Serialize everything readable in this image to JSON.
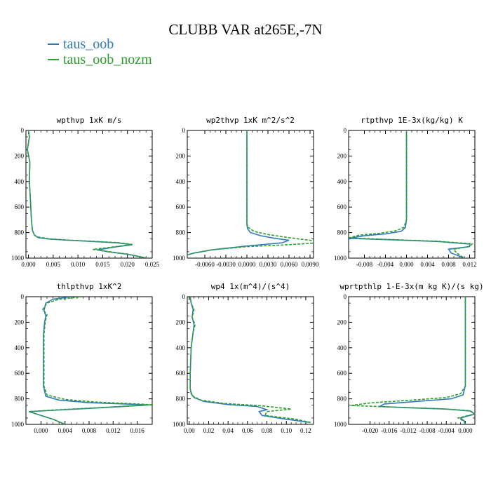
{
  "title": "CLUBB VAR at265E,-7N",
  "legend": [
    {
      "label": "taus_oob",
      "color": "#2e7abf"
    },
    {
      "label": "taus_oob_nozm",
      "color": "#2ca02c"
    }
  ],
  "chart_data": [
    {
      "type": "line",
      "title": "wpthvp  1xK m/s",
      "xlim": [
        -0.0005,
        0.025
      ],
      "ylim": [
        1000,
        0
      ],
      "xticks": [
        "0.000",
        "0.005",
        "0.010",
        "0.015",
        "0.020",
        "0.025"
      ],
      "xtick_values": [
        0,
        0.005,
        0.01,
        0.015,
        0.02,
        0.025
      ],
      "yticks": [
        "0",
        "200",
        "400",
        "600",
        "800",
        "1000"
      ],
      "ytick_values": [
        0,
        200,
        400,
        600,
        800,
        1000
      ],
      "series": [
        {
          "name": "taus_oob",
          "color": "#2e7abf",
          "x": [
            0.0,
            0.0002,
            -0.0002,
            0.0003,
            0.0002,
            0.0004,
            0.0006,
            0.0008,
            0.0012,
            0.002,
            0.004,
            0.008,
            0.013,
            0.018,
            0.021,
            0.018,
            0.014,
            0.016,
            0.02,
            0.024
          ],
          "y": [
            0,
            50,
            150,
            250,
            400,
            550,
            700,
            780,
            820,
            840,
            850,
            860,
            870,
            880,
            895,
            910,
            935,
            950,
            970,
            1000
          ]
        },
        {
          "name": "taus_oob_nozm",
          "color": "#2ca02c",
          "x": [
            0.0,
            0.0002,
            -0.0002,
            0.0003,
            0.0002,
            0.0004,
            0.0006,
            0.0008,
            0.0012,
            0.002,
            0.004,
            0.008,
            0.013,
            0.018,
            0.021,
            0.018,
            0.013,
            0.016,
            0.02,
            0.024
          ],
          "y": [
            0,
            50,
            150,
            250,
            400,
            550,
            700,
            780,
            820,
            835,
            848,
            858,
            868,
            878,
            893,
            908,
            932,
            948,
            968,
            1000
          ]
        }
      ]
    },
    {
      "type": "line",
      "title": "wp2thvp  1xK m^2/s^2",
      "xlim": [
        -0.0085,
        0.0095
      ],
      "ylim": [
        1000,
        0
      ],
      "xticks": [
        "-0.0060",
        "-0.0030",
        "0.0000",
        "0.0030",
        "0.0060",
        "0.0090"
      ],
      "xtick_values": [
        -0.006,
        -0.003,
        0.0,
        0.003,
        0.006,
        0.009
      ],
      "yticks": [
        "0",
        "200",
        "400",
        "600",
        "800",
        "1000"
      ],
      "ytick_values": [
        0,
        200,
        400,
        600,
        800,
        1000
      ],
      "series": [
        {
          "name": "taus_oob",
          "color": "#2e7abf",
          "x": [
            0.0,
            0.0,
            0.0,
            0.0,
            0.0001,
            0.0005,
            0.002,
            0.004,
            0.006,
            0.005,
            0.0,
            -0.005,
            -0.0075,
            -0.0085
          ],
          "y": [
            0,
            300,
            600,
            740,
            770,
            800,
            825,
            845,
            860,
            880,
            905,
            935,
            960,
            975
          ]
        },
        {
          "name": "taus_oob_nozm",
          "color": "#2ca02c",
          "x": [
            0.0,
            0.0,
            0.0,
            0.0,
            0.0002,
            0.001,
            0.003,
            0.006,
            0.009,
            0.01,
            0.006,
            0.0,
            -0.005,
            -0.0075,
            -0.0085
          ],
          "y": [
            0,
            300,
            600,
            730,
            760,
            790,
            815,
            840,
            860,
            880,
            895,
            910,
            935,
            960,
            975
          ]
        }
      ]
    },
    {
      "type": "line",
      "title": "rtpthvp  1E-3x(kg/kg) K",
      "xlim": [
        -0.011,
        0.013
      ],
      "ylim": [
        1000,
        0
      ],
      "xticks": [
        "-0.008",
        "-0.004",
        "0.000",
        "0.004",
        "0.008",
        "0.012"
      ],
      "xtick_values": [
        -0.008,
        -0.004,
        0.0,
        0.004,
        0.008,
        0.012
      ],
      "yticks": [
        "0",
        "200",
        "400",
        "600",
        "800",
        "1000"
      ],
      "ytick_values": [
        0,
        200,
        400,
        600,
        800,
        1000
      ],
      "series": [
        {
          "name": "taus_oob",
          "color": "#2e7abf",
          "x": [
            0.0,
            0.0,
            0.0,
            -0.0002,
            -0.001,
            -0.004,
            -0.008,
            -0.011,
            -0.004,
            0.006,
            0.012,
            0.012,
            0.008,
            0.0085,
            0.011
          ],
          "y": [
            0,
            300,
            700,
            760,
            790,
            810,
            825,
            845,
            855,
            870,
            890,
            910,
            930,
            960,
            1000
          ]
        },
        {
          "name": "taus_oob_nozm",
          "color": "#2ca02c",
          "x": [
            0.0,
            0.0,
            0.0,
            -0.0005,
            -0.002,
            -0.005,
            -0.009,
            -0.011,
            -0.004,
            0.006,
            0.0125,
            0.012,
            0.009,
            0.0095,
            0.011
          ],
          "y": [
            0,
            300,
            700,
            760,
            785,
            805,
            820,
            842,
            853,
            868,
            888,
            908,
            930,
            960,
            1000
          ]
        }
      ]
    },
    {
      "type": "line",
      "title": "thlpthvp  1xK^2",
      "xlim": [
        -0.0025,
        0.0185
      ],
      "ylim": [
        1000,
        0
      ],
      "xticks": [
        "0.000",
        "0.004",
        "0.008",
        "0.012",
        "0.016"
      ],
      "xtick_values": [
        0,
        0.004,
        0.008,
        0.012,
        0.016
      ],
      "yticks": [
        "0",
        "200",
        "400",
        "600",
        "800",
        "1000"
      ],
      "ytick_values": [
        0,
        200,
        400,
        600,
        800,
        1000
      ],
      "series": [
        {
          "name": "taus_oob",
          "color": "#2e7abf",
          "x": [
            0.005,
            0.002,
            0.0008,
            0.0005,
            0.0008,
            0.0006,
            0.0004,
            0.0004,
            0.0004,
            0.0008,
            0.003,
            0.008,
            0.014,
            0.018,
            0.01,
            0.002,
            -0.002,
            0.0,
            0.002,
            0.004
          ],
          "y": [
            0,
            20,
            50,
            110,
            150,
            200,
            300,
            500,
            700,
            780,
            810,
            830,
            840,
            848,
            870,
            890,
            900,
            930,
            960,
            1000
          ]
        },
        {
          "name": "taus_oob_nozm",
          "color": "#2ca02c",
          "x": [
            0.007,
            0.003,
            0.001,
            0.0003,
            0.001,
            0.0007,
            0.0005,
            0.0005,
            0.0005,
            0.001,
            0.004,
            0.009,
            0.015,
            0.0185,
            0.01,
            0.002,
            -0.002,
            0.0,
            0.002,
            0.004
          ],
          "y": [
            0,
            20,
            50,
            100,
            140,
            200,
            300,
            500,
            700,
            770,
            805,
            825,
            838,
            846,
            868,
            888,
            900,
            930,
            960,
            1000
          ]
        }
      ]
    },
    {
      "type": "line",
      "title": "wp4  1x(m^4)/(s^4)",
      "xlim": [
        -0.002,
        0.128
      ],
      "ylim": [
        1000,
        0
      ],
      "xticks": [
        "0.00",
        "0.02",
        "0.04",
        "0.06",
        "0.08",
        "0.10",
        "0.12"
      ],
      "xtick_values": [
        0,
        0.02,
        0.04,
        0.06,
        0.08,
        0.1,
        0.12
      ],
      "yticks": [
        "0",
        "200",
        "400",
        "600",
        "800",
        "1000"
      ],
      "ytick_values": [
        0,
        200,
        400,
        600,
        800,
        1000
      ],
      "series": [
        {
          "name": "taus_oob",
          "color": "#2e7abf",
          "x": [
            0.001,
            0.002,
            0.004,
            0.003,
            0.005,
            0.004,
            0.002,
            0.001,
            0.001,
            0.002,
            0.005,
            0.015,
            0.04,
            0.07,
            0.08,
            0.072,
            0.075,
            0.1,
            0.125
          ],
          "y": [
            0,
            50,
            100,
            160,
            220,
            280,
            400,
            600,
            720,
            760,
            790,
            820,
            845,
            860,
            885,
            900,
            930,
            960,
            985
          ]
        },
        {
          "name": "taus_oob_nozm",
          "color": "#2ca02c",
          "x": [
            0.001,
            0.002,
            0.005,
            0.003,
            0.006,
            0.004,
            0.002,
            0.001,
            0.001,
            0.002,
            0.004,
            0.012,
            0.035,
            0.075,
            0.105,
            0.08,
            0.078,
            0.11,
            0.125
          ],
          "y": [
            0,
            50,
            100,
            160,
            220,
            280,
            400,
            600,
            720,
            750,
            780,
            810,
            835,
            855,
            880,
            900,
            930,
            960,
            985
          ]
        }
      ]
    },
    {
      "type": "line",
      "title": "wprtpthlp  1-E-3x(m kg K)/(s kg)",
      "xlim": [
        -0.0245,
        0.002
      ],
      "ylim": [
        1000,
        0
      ],
      "xticks": [
        "-0.020",
        "-0.016",
        "-0.012",
        "-0.008",
        "-0.004",
        "0.000"
      ],
      "xtick_values": [
        -0.02,
        -0.016,
        -0.012,
        -0.008,
        -0.004,
        0.0
      ],
      "yticks": [
        "0",
        "200",
        "400",
        "600",
        "800",
        "1000"
      ],
      "ytick_values": [
        0,
        200,
        400,
        600,
        800,
        1000
      ],
      "series": [
        {
          "name": "taus_oob",
          "color": "#2e7abf",
          "x": [
            0.0,
            0.0,
            0.0,
            -0.0005,
            -0.003,
            -0.01,
            -0.017,
            -0.018,
            -0.012,
            -0.004,
            0.001,
            0.002,
            -0.001,
            -0.0002,
            0.0
          ],
          "y": [
            0,
            300,
            700,
            770,
            800,
            820,
            840,
            860,
            870,
            880,
            895,
            920,
            950,
            975,
            1000
          ]
        },
        {
          "name": "taus_oob_nozm",
          "color": "#2ca02c",
          "x": [
            0.0,
            0.0,
            0.0,
            -0.001,
            -0.004,
            -0.012,
            -0.02,
            -0.024,
            -0.015,
            -0.005,
            0.001,
            0.002,
            -0.0015,
            -0.0003,
            0.0
          ],
          "y": [
            0,
            300,
            700,
            760,
            790,
            812,
            832,
            852,
            865,
            878,
            893,
            918,
            950,
            975,
            1000
          ]
        }
      ]
    }
  ]
}
